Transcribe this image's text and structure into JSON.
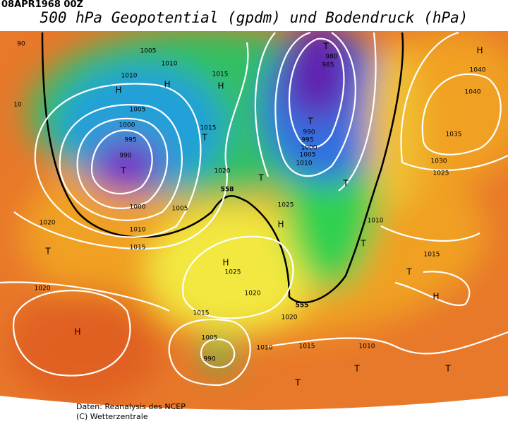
{
  "header": {
    "timestamp": "08APR1968 00Z",
    "title": "500 hPa Geopotential (gpdm) und Bodendruck (hPa)"
  },
  "isobar_labels": [
    1005,
    1010,
    1010,
    1015,
    1005,
    1000,
    995,
    990,
    1015,
    1020,
    1000,
    1005,
    1010,
    1015,
    1020,
    1020,
    980,
    985,
    990,
    995,
    1000,
    1005,
    1010,
    1025,
    1040,
    1040,
    1035,
    1030,
    1025,
    1010,
    1025,
    1020,
    1015,
    1020,
    1015,
    1005,
    1010,
    1015,
    1010,
    990,
    90,
    10
  ],
  "geopotential_labels": [
    558,
    555
  ],
  "pressure_centers": [
    "T",
    "H",
    "H",
    "H",
    "H",
    "T",
    "T",
    "T",
    "T",
    "T",
    "H",
    "T",
    "T",
    "H",
    "T",
    "H",
    "H",
    "T",
    "T",
    "T"
  ],
  "footer": {
    "source": "Daten: Reanalysis des NCEP",
    "copyright": "(C) Wetterzentrale"
  }
}
